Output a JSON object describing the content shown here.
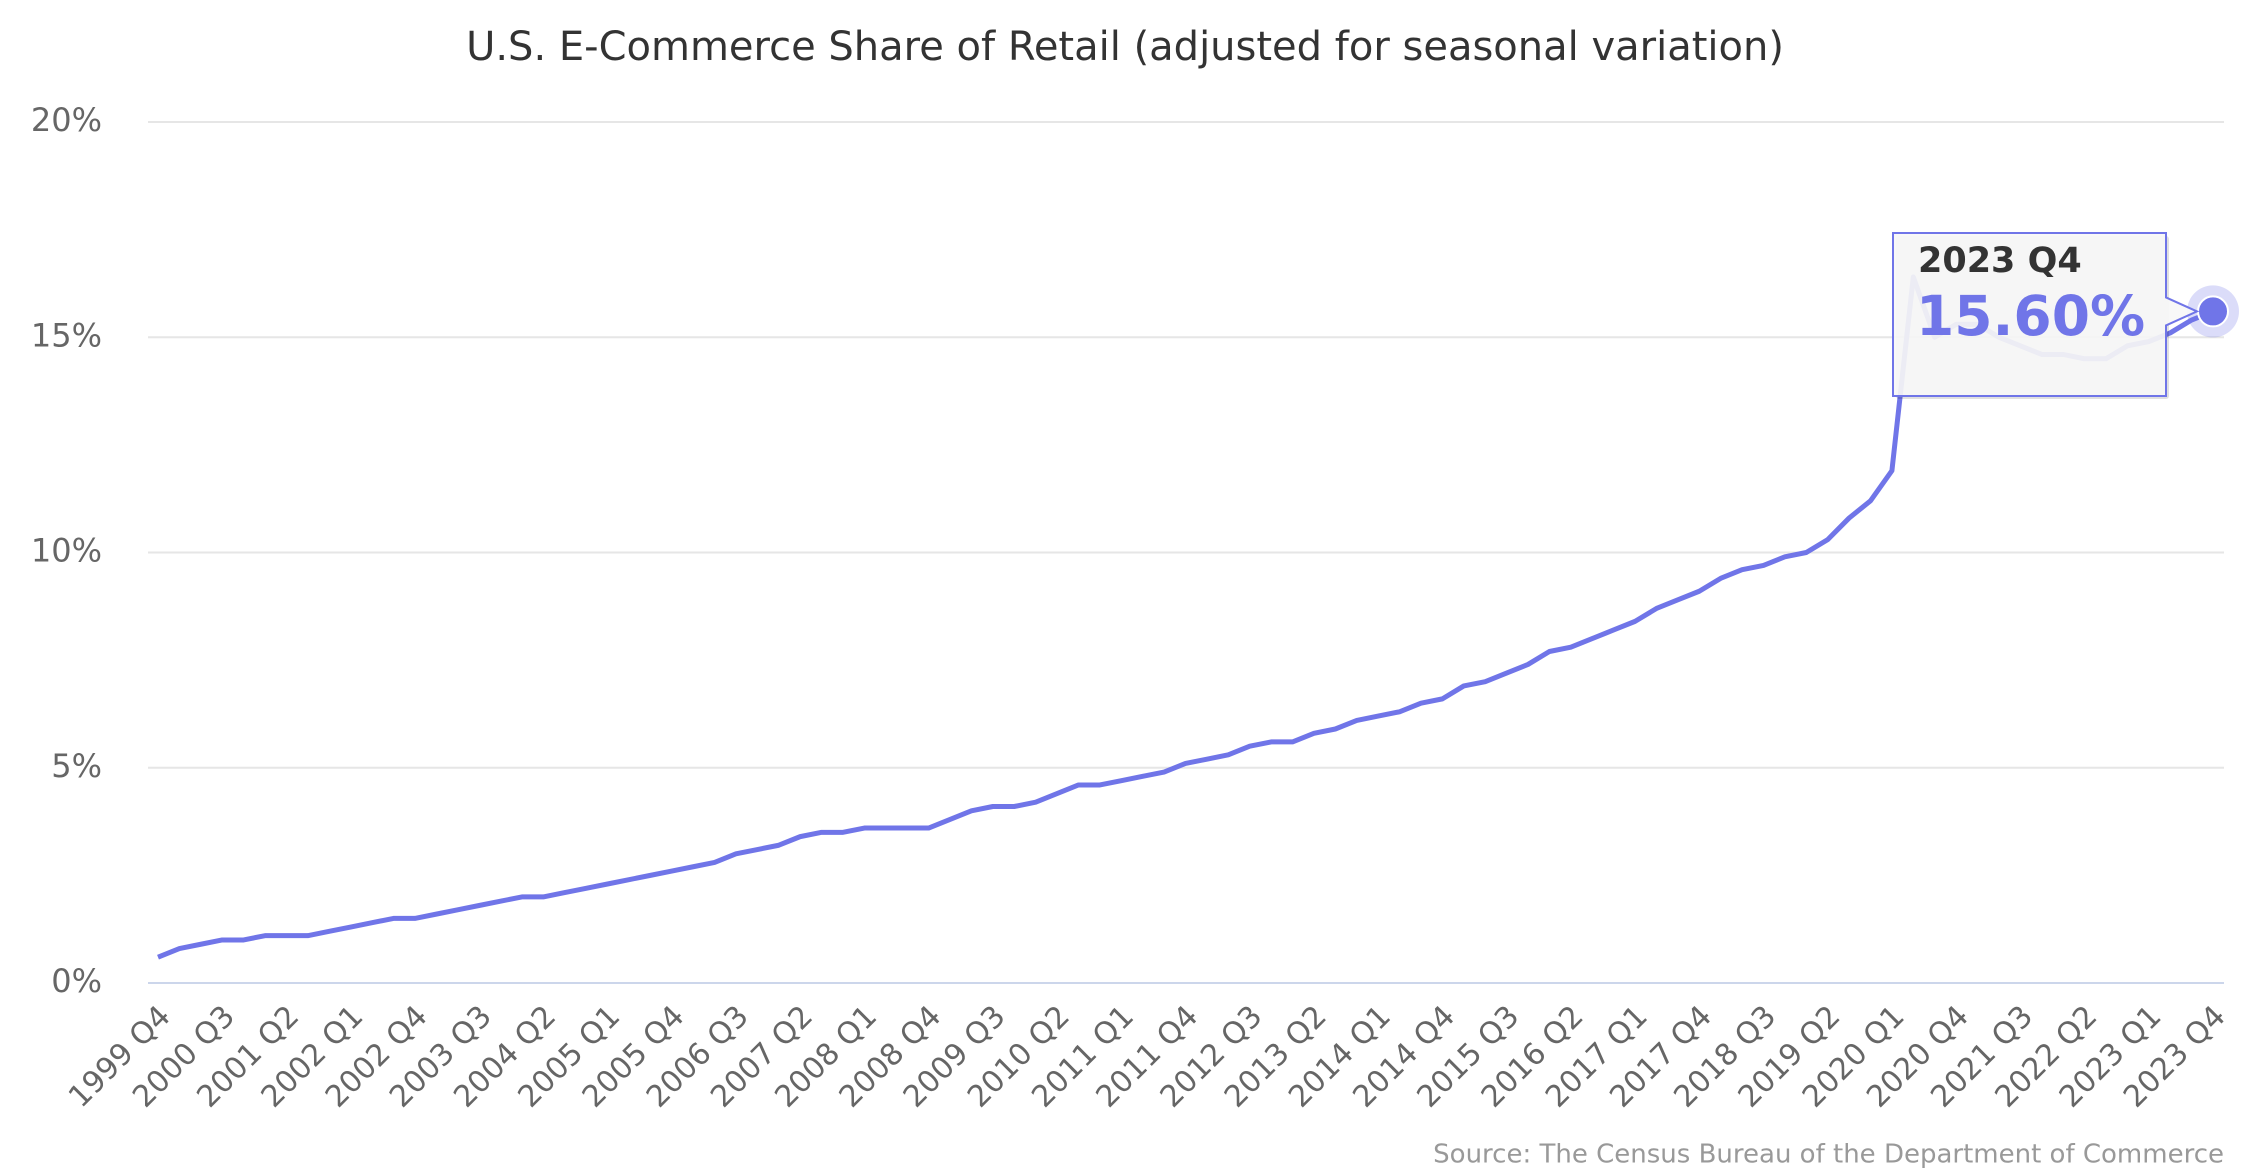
{
  "chart_data": {
    "type": "line",
    "title": "U.S. E-Commerce Share of Retail (adjusted for seasonal variation)",
    "source": "Source: The Census Bureau of the Department of Commerce",
    "categories": [
      "1999 Q4",
      null,
      null,
      "2000 Q3",
      null,
      null,
      "2001 Q2",
      null,
      null,
      "2002 Q1",
      null,
      null,
      "2002 Q4",
      null,
      null,
      "2003 Q3",
      null,
      null,
      "2004 Q2",
      null,
      null,
      "2005 Q1",
      null,
      null,
      "2005 Q4",
      null,
      null,
      "2006 Q3",
      null,
      null,
      "2007 Q2",
      null,
      null,
      "2008 Q1",
      null,
      null,
      "2008 Q4",
      null,
      null,
      "2009 Q3",
      null,
      null,
      "2010 Q2",
      null,
      null,
      "2011 Q1",
      null,
      null,
      "2011 Q4",
      null,
      null,
      "2012 Q3",
      null,
      null,
      "2013 Q2",
      null,
      null,
      "2014 Q1",
      null,
      null,
      "2014 Q4",
      null,
      null,
      "2015 Q3",
      null,
      null,
      "2016 Q2",
      null,
      null,
      "2017 Q1",
      null,
      null,
      "2017 Q4",
      null,
      null,
      "2018 Q3",
      null,
      null,
      "2019 Q2",
      null,
      null,
      "2020 Q1",
      null,
      null,
      "2020 Q4",
      null,
      null,
      "2021 Q3",
      null,
      null,
      "2022 Q2",
      null,
      null,
      "2023 Q1",
      null,
      null,
      "2023 Q4"
    ],
    "series": [
      {
        "name": "E-Commerce Share",
        "color": "#7075e8",
        "values": [
          0.6,
          0.8,
          0.9,
          1.0,
          1.0,
          1.1,
          1.1,
          1.1,
          1.2,
          1.3,
          1.4,
          1.5,
          1.5,
          1.6,
          1.7,
          1.8,
          1.9,
          2.0,
          2.0,
          2.1,
          2.2,
          2.3,
          2.4,
          2.5,
          2.6,
          2.7,
          2.8,
          3.0,
          3.1,
          3.2,
          3.4,
          3.5,
          3.5,
          3.6,
          3.6,
          3.6,
          3.6,
          3.8,
          4.0,
          4.1,
          4.1,
          4.2,
          4.4,
          4.6,
          4.6,
          4.7,
          4.8,
          4.9,
          5.1,
          5.2,
          5.3,
          5.5,
          5.6,
          5.6,
          5.8,
          5.9,
          6.1,
          6.2,
          6.3,
          6.5,
          6.6,
          6.9,
          7.0,
          7.2,
          7.4,
          7.7,
          7.8,
          8.0,
          8.2,
          8.4,
          8.7,
          8.9,
          9.1,
          9.4,
          9.6,
          9.7,
          9.9,
          10.0,
          10.3,
          10.8,
          11.2,
          11.9,
          16.4,
          15.0,
          15.3,
          15.3,
          15.0,
          14.8,
          14.6,
          14.6,
          14.5,
          14.5,
          14.8,
          14.9,
          15.1,
          15.4,
          15.6
        ]
      }
    ],
    "ylim": [
      0,
      20
    ],
    "yticks": [
      {
        "value": 0,
        "label": "0%"
      },
      {
        "value": 5,
        "label": "5%"
      },
      {
        "value": 10,
        "label": "10%"
      },
      {
        "value": 15,
        "label": "15%"
      },
      {
        "value": 20,
        "label": "20%"
      }
    ],
    "grid": true,
    "tooltip": {
      "value_label": "15.60%"
    }
  }
}
